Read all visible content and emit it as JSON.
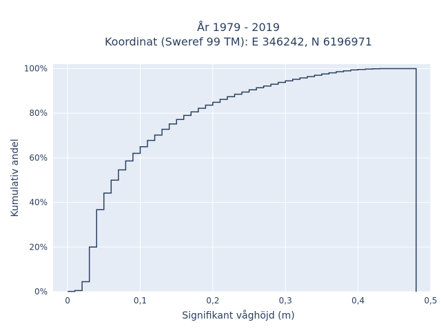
{
  "chart_data": {
    "type": "line",
    "line_shape": "step-cdf",
    "title_line1": "År 1979 - 2019",
    "title_line2": "Koordinat (Sweref 99 TM): E 346242, N 6196971",
    "xlabel": "Signifikant våghöjd (m)",
    "ylabel": "Kumulativ andel",
    "xlim": [
      -0.02,
      0.5
    ],
    "ylim": [
      0,
      1.02
    ],
    "x_ticks": [
      0,
      0.1,
      0.2,
      0.3,
      0.4,
      0.5
    ],
    "x_tick_labels": [
      "0",
      "0,1",
      "0,2",
      "0,3",
      "0,4",
      "0,5"
    ],
    "y_ticks": [
      0,
      0.2,
      0.4,
      0.6,
      0.8,
      1.0
    ],
    "y_tick_labels": [
      "0%",
      "20%",
      "40%",
      "60%",
      "80%",
      "100%"
    ],
    "grid": true,
    "colors": {
      "line": "#2a3f5f",
      "plot_bg": "#e5ecf6",
      "grid": "#ffffff"
    },
    "x": [
      0.01,
      0.02,
      0.03,
      0.04,
      0.05,
      0.06,
      0.07,
      0.08,
      0.09,
      0.1,
      0.11,
      0.12,
      0.13,
      0.14,
      0.15,
      0.16,
      0.17,
      0.18,
      0.19,
      0.2,
      0.21,
      0.22,
      0.23,
      0.24,
      0.25,
      0.26,
      0.27,
      0.28,
      0.29,
      0.3,
      0.31,
      0.32,
      0.33,
      0.34,
      0.35,
      0.36,
      0.37,
      0.38,
      0.39,
      0.4,
      0.41,
      0.42,
      0.43,
      0.44,
      0.45,
      0.46,
      0.47,
      0.48
    ],
    "y": [
      0.001,
      0.005,
      0.045,
      0.2,
      0.368,
      0.442,
      0.5,
      0.546,
      0.586,
      0.62,
      0.65,
      0.678,
      0.702,
      0.728,
      0.752,
      0.772,
      0.79,
      0.806,
      0.822,
      0.836,
      0.849,
      0.862,
      0.874,
      0.885,
      0.895,
      0.905,
      0.914,
      0.922,
      0.93,
      0.938,
      0.945,
      0.952,
      0.958,
      0.964,
      0.97,
      0.976,
      0.981,
      0.986,
      0.99,
      0.994,
      0.996,
      0.998,
      0.999,
      1.0,
      1.0,
      1.0,
      1.0,
      1.0
    ]
  }
}
